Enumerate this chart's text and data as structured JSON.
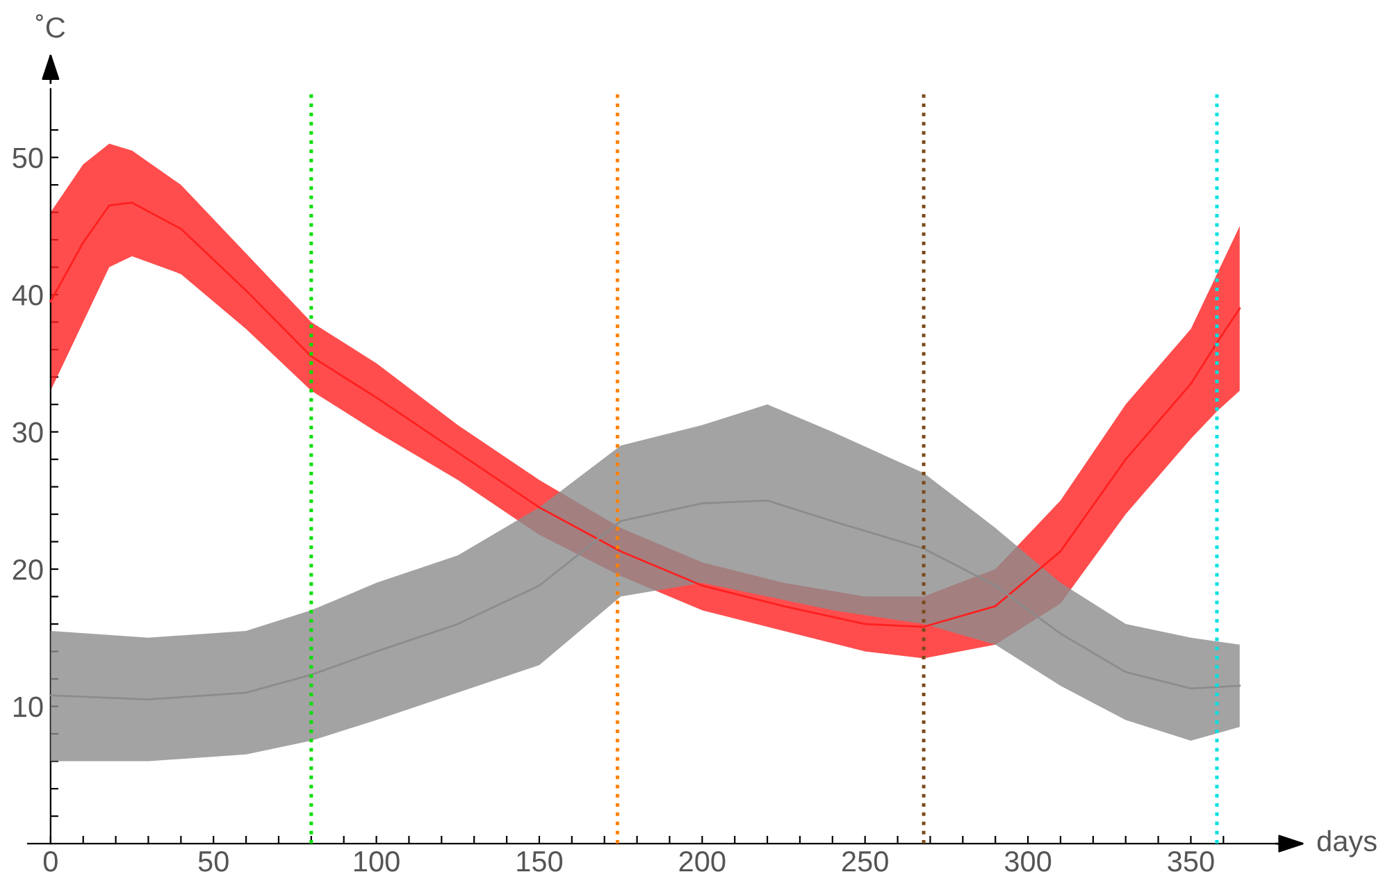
{
  "chart_data": {
    "type": "line",
    "xlabel": "days",
    "ylabel": "˚C",
    "xlim": [
      -7,
      377
    ],
    "ylim": [
      0,
      55
    ],
    "xticks": [
      0,
      {
        "value": 10,
        "label": null
      },
      {
        "value": 20,
        "label": null
      },
      {
        "value": 30,
        "label": null
      },
      {
        "value": 40,
        "label": null
      },
      50,
      {
        "value": 60,
        "label": null
      },
      {
        "value": 70,
        "label": null
      },
      {
        "value": 80,
        "label": null
      },
      {
        "value": 90,
        "label": null
      },
      100,
      {
        "value": 110,
        "label": null
      },
      {
        "value": 120,
        "label": null
      },
      {
        "value": 130,
        "label": null
      },
      {
        "value": 140,
        "label": null
      },
      150,
      {
        "value": 160,
        "label": null
      },
      {
        "value": 170,
        "label": null
      },
      {
        "value": 180,
        "label": null
      },
      {
        "value": 190,
        "label": null
      },
      200,
      {
        "value": 210,
        "label": null
      },
      {
        "value": 220,
        "label": null
      },
      {
        "value": 230,
        "label": null
      },
      {
        "value": 240,
        "label": null
      },
      250,
      {
        "value": 260,
        "label": null
      },
      {
        "value": 270,
        "label": null
      },
      {
        "value": 280,
        "label": null
      },
      {
        "value": 290,
        "label": null
      },
      300,
      {
        "value": 310,
        "label": null
      },
      {
        "value": 320,
        "label": null
      },
      {
        "value": 330,
        "label": null
      },
      {
        "value": 340,
        "label": null
      },
      350,
      {
        "value": 360,
        "label": null
      }
    ],
    "yticks": [
      {
        "value": 2,
        "label": null
      },
      {
        "value": 4,
        "label": null
      },
      {
        "value": 6,
        "label": null
      },
      {
        "value": 8,
        "label": null
      },
      10,
      {
        "value": 12,
        "label": null
      },
      {
        "value": 14,
        "label": null
      },
      {
        "value": 16,
        "label": null
      },
      {
        "value": 18,
        "label": null
      },
      20,
      {
        "value": 22,
        "label": null
      },
      {
        "value": 24,
        "label": null
      },
      {
        "value": 26,
        "label": null
      },
      {
        "value": 28,
        "label": null
      },
      30,
      {
        "value": 32,
        "label": null
      },
      {
        "value": 34,
        "label": null
      },
      {
        "value": 36,
        "label": null
      },
      {
        "value": 38,
        "label": null
      },
      40,
      {
        "value": 42,
        "label": null
      },
      {
        "value": 44,
        "label": null
      },
      {
        "value": 46,
        "label": null
      },
      {
        "value": 48,
        "label": null
      },
      50,
      {
        "value": 52,
        "label": null
      }
    ],
    "grid": false,
    "legend": false,
    "marker": "none",
    "line_style": "solid",
    "series": [
      {
        "color": "#ff2020",
        "x": [
          0,
          10,
          18,
          25,
          40,
          60,
          80,
          100,
          125,
          150,
          175,
          200,
          225,
          250,
          268,
          290,
          310,
          330,
          350,
          358,
          365
        ],
        "values": [
          39.5,
          43.8,
          46.5,
          46.7,
          44.8,
          40.3,
          35.5,
          32.5,
          28.5,
          24.5,
          21.3,
          18.8,
          17.3,
          16,
          15.8,
          17.3,
          21.3,
          28,
          33.5,
          36.5,
          39
        ],
        "upper": [
          46,
          49.5,
          51,
          50.5,
          48,
          43,
          38,
          35,
          30.5,
          26.5,
          23,
          20.5,
          19,
          18,
          18,
          20,
          25,
          32,
          37.5,
          41.5,
          45
        ],
        "lower": [
          33,
          38,
          42,
          42.8,
          41.5,
          37.5,
          33,
          30,
          26.5,
          22.5,
          19.5,
          17,
          15.5,
          14,
          13.5,
          14.5,
          17.5,
          24,
          29.5,
          31.5,
          33
        ]
      },
      {
        "color": "#8c8c8c",
        "x": [
          0,
          30,
          60,
          80,
          100,
          125,
          150,
          175,
          200,
          220,
          240,
          268,
          290,
          310,
          330,
          350,
          365
        ],
        "values": [
          10.8,
          10.5,
          11,
          12.3,
          14,
          16,
          18.8,
          23.5,
          24.8,
          25,
          23.5,
          21.5,
          18.8,
          15.3,
          12.5,
          11.3,
          11.5
        ],
        "upper": [
          15.5,
          15,
          15.5,
          17,
          19,
          21,
          24.5,
          29,
          30.5,
          32,
          30,
          27,
          23,
          19,
          16,
          15,
          14.5
        ],
        "lower": [
          6,
          6,
          6.5,
          7.5,
          9,
          11,
          13,
          18,
          19,
          18,
          17,
          16,
          14.5,
          11.5,
          9,
          7.5,
          8.5
        ]
      }
    ],
    "ref_lines": [
      {
        "axis": "x",
        "value": 80,
        "color": "#00e000",
        "line_style": "dotted"
      },
      {
        "axis": "x",
        "value": 174,
        "color": "#ff8000",
        "line_style": "dotted"
      },
      {
        "axis": "x",
        "value": 268,
        "color": "#7a4a1a",
        "line_style": "dotted"
      },
      {
        "axis": "x",
        "value": 358,
        "color": "#00e0e0",
        "line_style": "dotted"
      }
    ]
  }
}
